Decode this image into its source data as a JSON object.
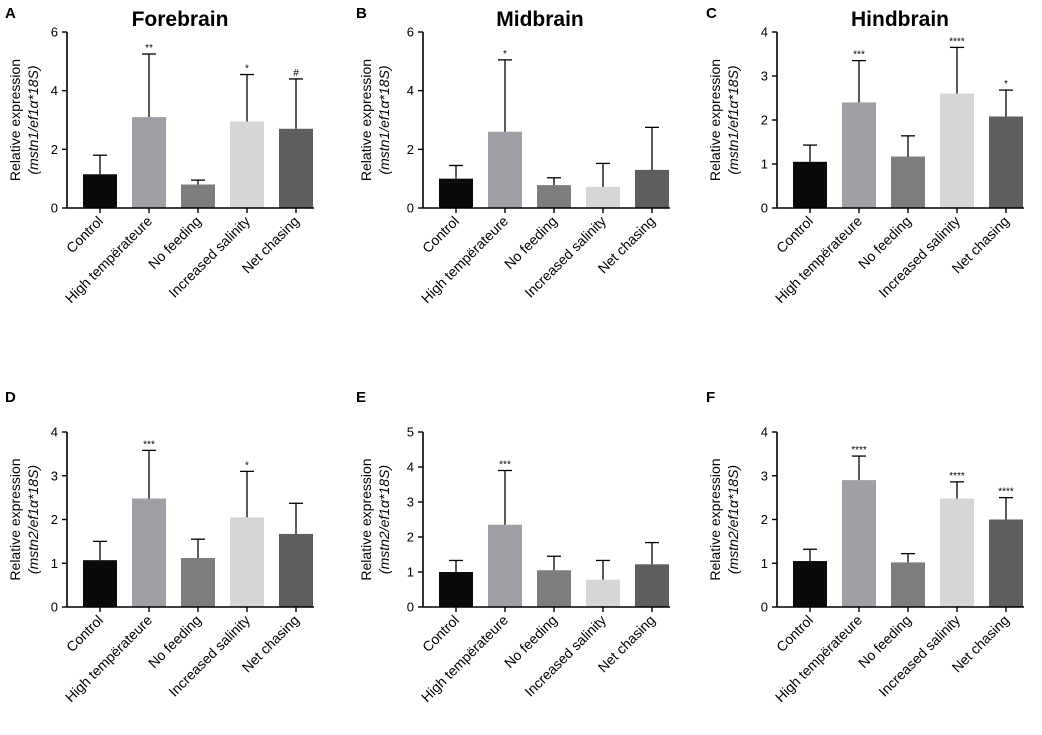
{
  "figure": {
    "categories": [
      "Control",
      "High tempërateure",
      "No feeding",
      "Increased salinity",
      "Net chasing"
    ]
  },
  "colors": {
    "bars": [
      "#0a0a0a",
      "#9f9fa6",
      "#7d7d7d",
      "#d6d6d6",
      "#5e5e5e"
    ],
    "axis": "#000000"
  },
  "chart_data": [
    {
      "type": "bar",
      "letter": "A",
      "title": "Forebrain",
      "ylabel_line1": "Relative expression",
      "ylabel_line2": "(mstn1/ef1α*18S)",
      "ylim": [
        0,
        6
      ],
      "yticks": [
        "0",
        "2",
        "4",
        "6"
      ],
      "values": [
        1.15,
        3.1,
        0.8,
        2.95,
        2.7
      ],
      "errors": [
        0.65,
        2.15,
        0.15,
        1.6,
        1.7
      ],
      "significance": [
        "",
        "**",
        "",
        "*",
        "#"
      ]
    },
    {
      "type": "bar",
      "letter": "B",
      "title": "Midbrain",
      "ylabel_line1": "Relative expression",
      "ylabel_line2": "(mstn1/ef1α*18S)",
      "ylim": [
        0,
        6
      ],
      "yticks": [
        "0",
        "2",
        "4",
        "6"
      ],
      "values": [
        1.0,
        2.6,
        0.78,
        0.72,
        1.3
      ],
      "errors": [
        0.45,
        2.45,
        0.25,
        0.8,
        1.45
      ],
      "significance": [
        "",
        "*",
        "",
        "",
        ""
      ]
    },
    {
      "type": "bar",
      "letter": "C",
      "title": "Hindbrain",
      "ylabel_line1": "Relative expression",
      "ylabel_line2": "(mstn1/ef1α*18S)",
      "ylim": [
        0,
        4
      ],
      "yticks": [
        "0",
        "1",
        "2",
        "3",
        "4"
      ],
      "values": [
        1.05,
        2.4,
        1.17,
        2.6,
        2.08
      ],
      "errors": [
        0.38,
        0.95,
        0.47,
        1.05,
        0.6
      ],
      "significance": [
        "",
        "***",
        "",
        "****",
        "*"
      ]
    },
    {
      "type": "bar",
      "letter": "D",
      "title": "",
      "ylabel_line1": "Relative expression",
      "ylabel_line2": "(mstn2/ef1α*18S)",
      "ylim": [
        0,
        4
      ],
      "yticks": [
        "0",
        "1",
        "2",
        "3",
        "4"
      ],
      "values": [
        1.07,
        2.48,
        1.12,
        2.05,
        1.67
      ],
      "errors": [
        0.43,
        1.1,
        0.43,
        1.05,
        0.7
      ],
      "significance": [
        "",
        "***",
        "",
        "*",
        ""
      ]
    },
    {
      "type": "bar",
      "letter": "E",
      "title": "",
      "ylabel_line1": "Relative expression",
      "ylabel_line2": "(mstn2/ef1α*18S)",
      "ylim": [
        0,
        5
      ],
      "yticks": [
        "0",
        "1",
        "2",
        "3",
        "4",
        "5"
      ],
      "values": [
        1.0,
        2.35,
        1.05,
        0.78,
        1.22
      ],
      "errors": [
        0.33,
        1.55,
        0.4,
        0.55,
        0.62
      ],
      "significance": [
        "",
        "***",
        "",
        "",
        ""
      ]
    },
    {
      "type": "bar",
      "letter": "F",
      "title": "",
      "ylabel_line1": "Relative expression",
      "ylabel_line2": "(mstn2/ef1α*18S)",
      "ylim": [
        0,
        4
      ],
      "yticks": [
        "0",
        "1",
        "2",
        "3",
        "4"
      ],
      "values": [
        1.05,
        2.9,
        1.02,
        2.48,
        2.0
      ],
      "errors": [
        0.27,
        0.55,
        0.2,
        0.38,
        0.5
      ],
      "significance": [
        "",
        "****",
        "",
        "****",
        "****"
      ]
    }
  ]
}
